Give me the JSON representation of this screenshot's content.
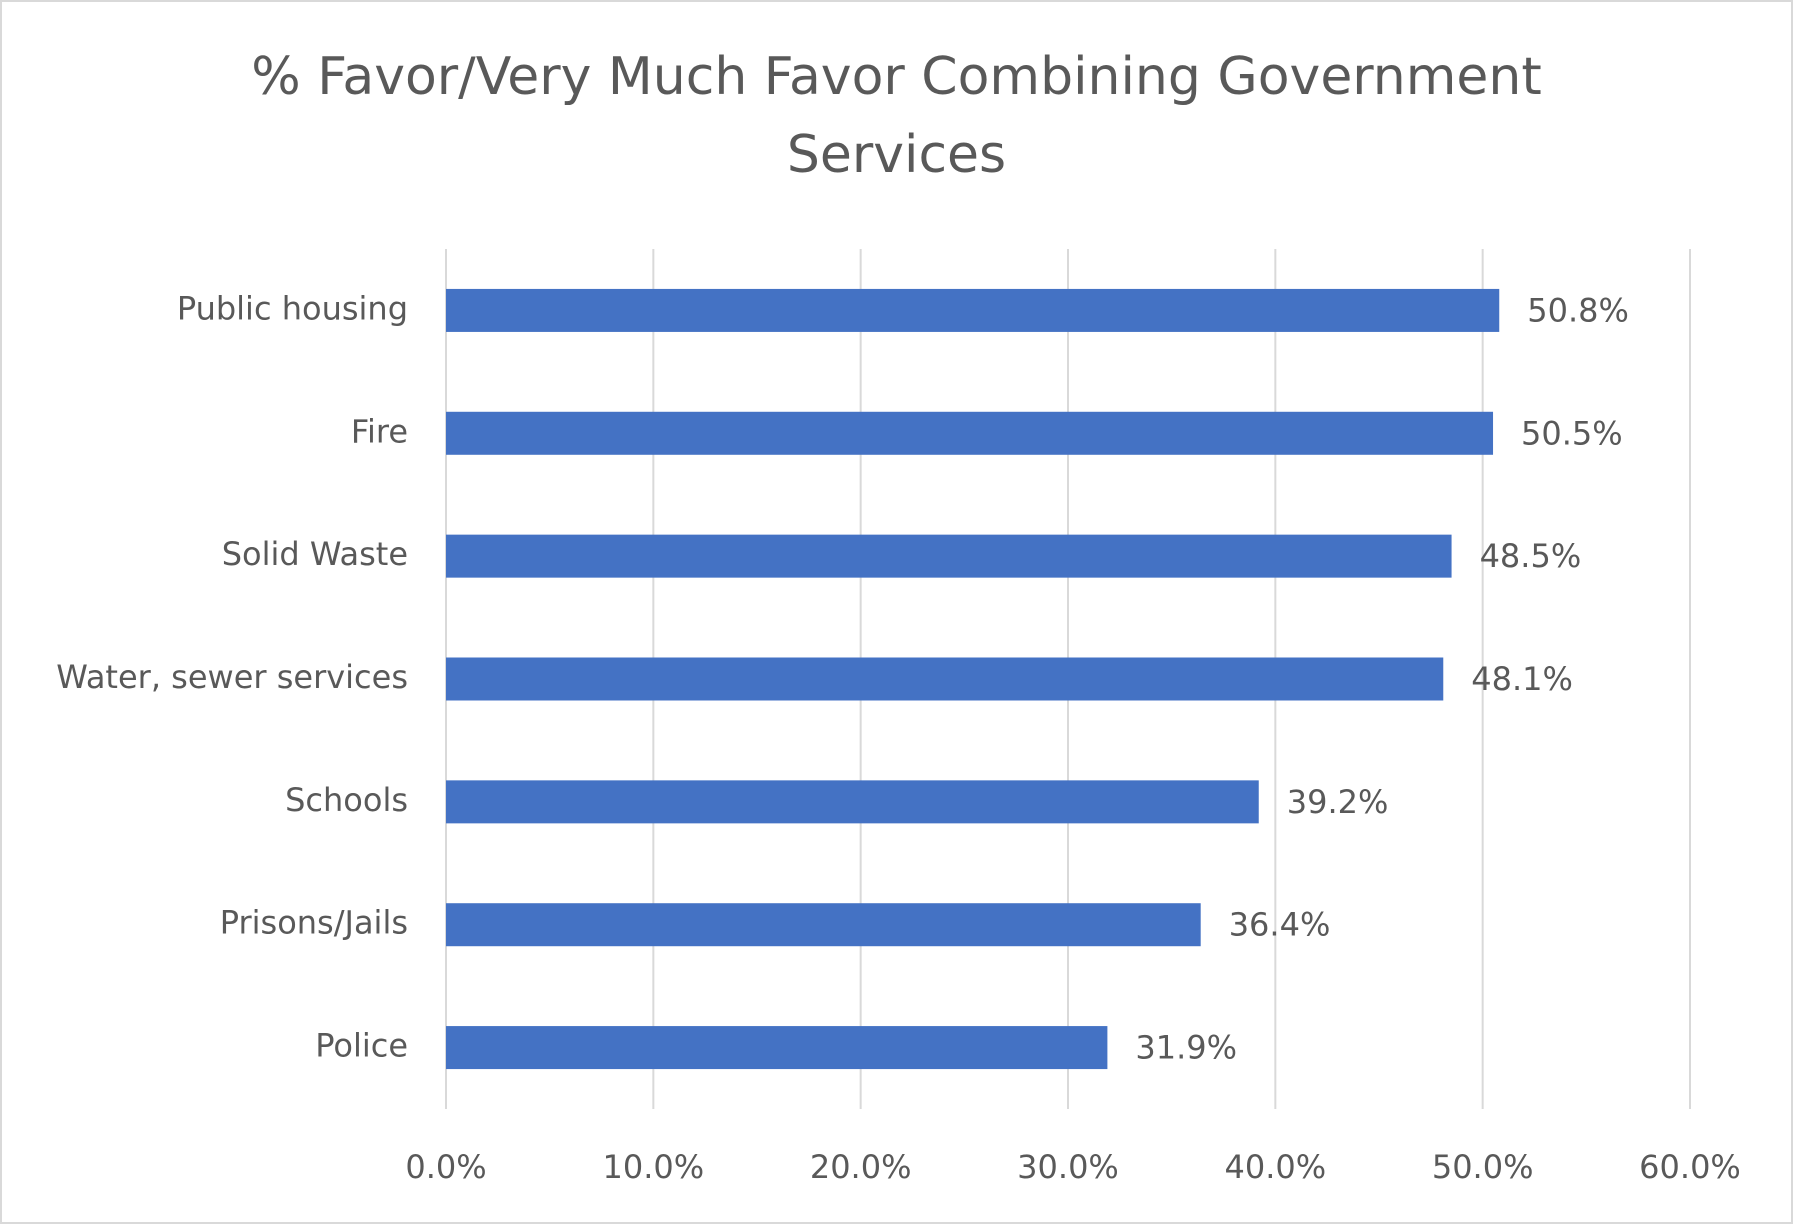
{
  "chart_data": {
    "type": "bar",
    "orientation": "horizontal",
    "title": "% Favor/Very Much Favor Combining Government Services",
    "categories": [
      "Public housing",
      "Fire",
      "Solid Waste",
      "Water, sewer services",
      "Schools",
      "Prisons/Jails",
      "Police"
    ],
    "values": [
      50.8,
      50.5,
      48.5,
      48.1,
      39.2,
      36.4,
      31.9
    ],
    "value_labels": [
      "50.8%",
      "50.5%",
      "48.5%",
      "48.1%",
      "39.2%",
      "36.4%",
      "31.9%"
    ],
    "color": "#4472c4",
    "xlim": [
      0,
      60
    ],
    "xticks": [
      {
        "value": 0,
        "label": "0.0%"
      },
      {
        "value": 10,
        "label": "10.0%"
      },
      {
        "value": 20,
        "label": "20.0%"
      },
      {
        "value": 30,
        "label": "30.0%"
      },
      {
        "value": 40,
        "label": "40.0%"
      },
      {
        "value": 50,
        "label": "50.0%"
      },
      {
        "value": 60,
        "label": "60.0%"
      }
    ],
    "grid": true
  }
}
